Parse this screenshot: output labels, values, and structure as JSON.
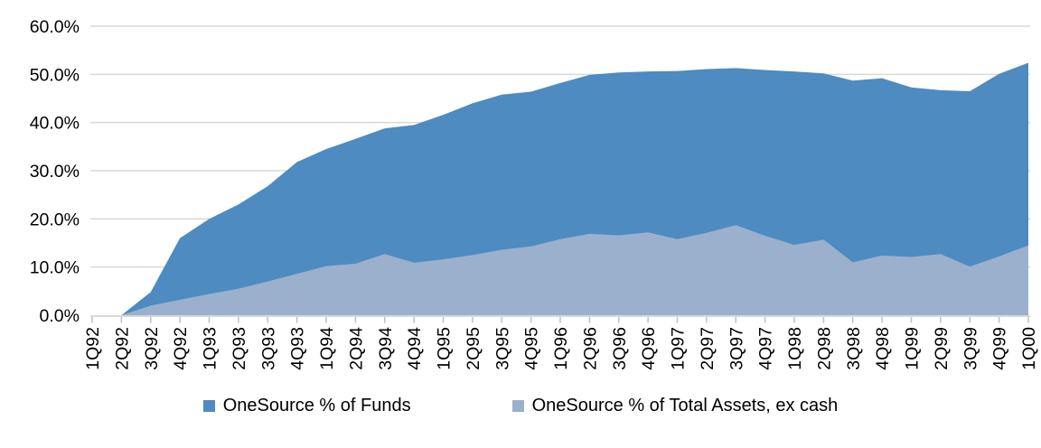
{
  "chart_data": {
    "type": "area",
    "title": "",
    "xlabel": "",
    "ylabel": "",
    "stacked": false,
    "grid": true,
    "legend_position": "bottom",
    "categories": [
      "1Q92",
      "2Q92",
      "3Q92",
      "4Q92",
      "1Q93",
      "2Q93",
      "3Q93",
      "4Q93",
      "1Q94",
      "2Q94",
      "3Q94",
      "4Q94",
      "1Q95",
      "2Q95",
      "3Q95",
      "4Q95",
      "1Q96",
      "2Q96",
      "3Q96",
      "4Q96",
      "1Q97",
      "2Q97",
      "3Q97",
      "4Q97",
      "1Q98",
      "2Q98",
      "3Q98",
      "4Q98",
      "1Q99",
      "2Q99",
      "3Q99",
      "4Q99",
      "1Q00"
    ],
    "series": [
      {
        "name": "OneSource % of Funds",
        "color": "#4E8BC0",
        "values": [
          0.0,
          0.0,
          4.8,
          16.0,
          20.0,
          23.0,
          26.8,
          31.8,
          34.5,
          36.6,
          38.8,
          39.5,
          41.6,
          44.0,
          45.8,
          46.4,
          48.2,
          49.9,
          50.4,
          50.6,
          50.7,
          51.1,
          51.3,
          50.9,
          50.6,
          50.2,
          48.7,
          49.2,
          47.3,
          46.7,
          46.5,
          50.1,
          52.4
        ]
      },
      {
        "name": "OneSource % of Total Assets, ex cash",
        "color": "#9BB0CD",
        "values": [
          0.0,
          0.0,
          2.0,
          3.2,
          4.4,
          5.5,
          7.0,
          8.6,
          10.2,
          10.7,
          12.7,
          10.9,
          11.6,
          12.5,
          13.6,
          14.3,
          15.8,
          16.9,
          16.6,
          17.2,
          15.8,
          17.1,
          18.7,
          16.5,
          14.6,
          15.7,
          11.0,
          12.4,
          12.1,
          12.7,
          10.1,
          12.2,
          14.5
        ]
      }
    ],
    "y_axis": {
      "min": 0,
      "max": 60,
      "step": 10,
      "tick_labels": [
        "0.0%",
        "10.0%",
        "20.0%",
        "30.0%",
        "40.0%",
        "50.0%",
        "60.0%"
      ]
    },
    "ylim": [
      0,
      60
    ],
    "colors": {
      "gridline": "#D9D9D9",
      "axis_line": "#D9D9D9",
      "tick_mark": "#BFBFBF",
      "label_text": "#000000"
    }
  }
}
